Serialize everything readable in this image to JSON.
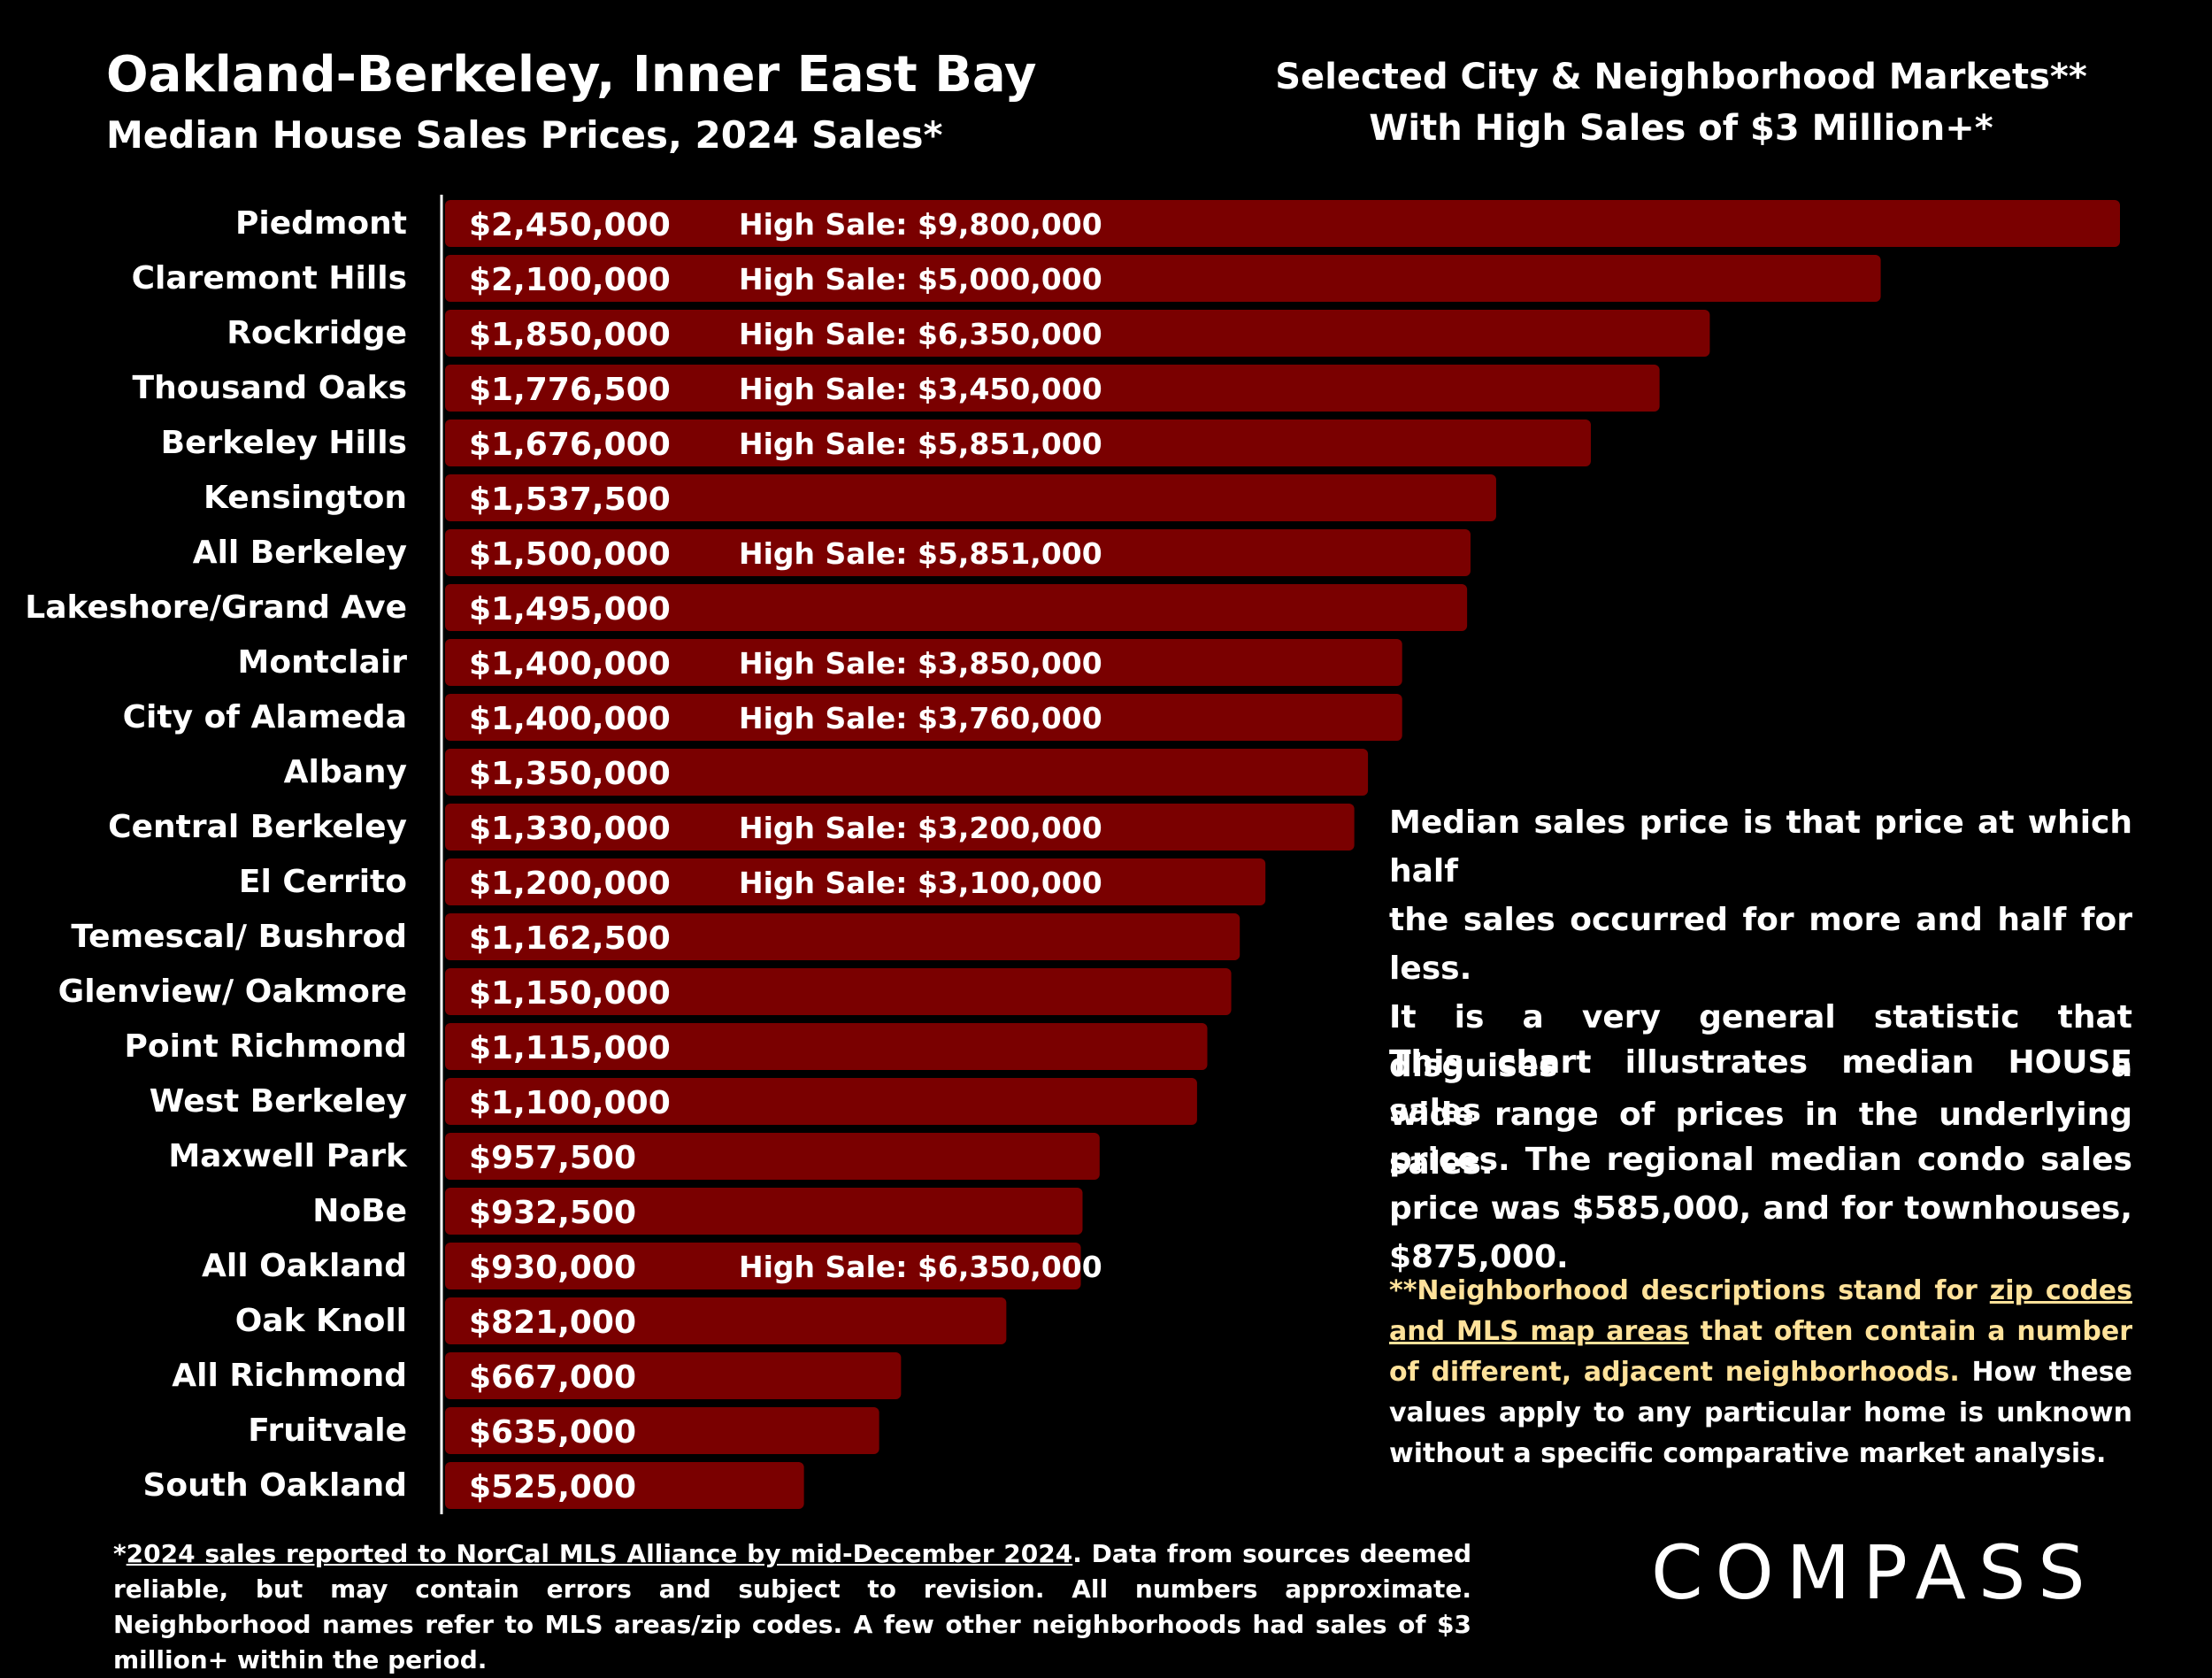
{
  "header": {
    "title": "Oakland-Berkeley, Inner East Bay",
    "subtitle": "Median House Sales Prices, 2024 Sales*",
    "right_line1": "Selected City & Neighborhood Markets**",
    "right_line2": "With High Sales of $3 Million+*"
  },
  "chart_data": {
    "type": "bar",
    "orientation": "horizontal",
    "bar_color": "#7a0000",
    "high_sale_prefix": "High Sale:",
    "xlim": [
      0,
      2450000
    ],
    "categories": [
      "Piedmont",
      "Claremont Hills",
      "Rockridge",
      "Thousand Oaks",
      "Berkeley Hills",
      "Kensington",
      "All Berkeley",
      "Lakeshore/Grand Ave",
      "Montclair",
      "City of Alameda",
      "Albany",
      "Central Berkeley",
      "El Cerrito",
      "Temescal/ Bushrod",
      "Glenview/ Oakmore",
      "Point Richmond",
      "West Berkeley",
      "Maxwell Park",
      "NoBe",
      "All Oakland",
      "Oak Knoll",
      "All Richmond",
      "Fruitvale",
      "South Oakland"
    ],
    "values": [
      2450000,
      2100000,
      1850000,
      1776500,
      1676000,
      1537500,
      1500000,
      1495000,
      1400000,
      1400000,
      1350000,
      1330000,
      1200000,
      1162500,
      1150000,
      1115000,
      1100000,
      957500,
      932500,
      930000,
      821000,
      667000,
      635000,
      525000
    ],
    "value_labels": [
      "$2,450,000",
      "$2,100,000",
      "$1,850,000",
      "$1,776,500",
      "$1,676,000",
      "$1,537,500",
      "$1,500,000",
      "$1,495,000",
      "$1,400,000",
      "$1,400,000",
      "$1,350,000",
      "$1,330,000",
      "$1,200,000",
      "$1,162,500",
      "$1,150,000",
      "$1,115,000",
      "$1,100,000",
      "$957,500",
      "$932,500",
      "$930,000",
      "$821,000",
      "$667,000",
      "$635,000",
      "$525,000"
    ],
    "high_sales": [
      "$9,800,000",
      "$5,000,000",
      "$6,350,000",
      "$3,450,000",
      "$5,851,000",
      "",
      "$5,851,000",
      "",
      "$3,850,000",
      "$3,760,000",
      "",
      "$3,200,000",
      "$3,100,000",
      "",
      "",
      "",
      "",
      "",
      "",
      "$6,350,000",
      "",
      "",
      "",
      ""
    ]
  },
  "explanation": {
    "p1_lines": [
      "Median sales price is that price at which half",
      "the sales occurred for more and half for less.",
      "It is a very general statistic that disguises a",
      "wide range of prices in the underlying sales."
    ],
    "p2_lines": [
      "This chart illustrates median HOUSE sales",
      "prices. The regional median condo sales",
      "price was $585,000, and for townhouses,",
      "$875,000."
    ]
  },
  "note": {
    "a": "**Neighborhood descriptions stand for ",
    "b": "zip codes and MLS map areas",
    "c": " that often contain a number of different, adjacent neighborhoods.",
    "d": " How these values apply to any particular home is unknown without a specific comparative market analysis."
  },
  "footer": {
    "a": "*",
    "b": "2024 sales reported to NorCal MLS Alliance by mid-December 2024",
    "c": ". Data from sources deemed reliable, but may contain errors and subject to revision. All numbers approximate. Neighborhood names refer to MLS areas/zip codes. A few other neighborhoods had sales of $3 million+ within the period."
  },
  "logo": {
    "text": "COMPASS"
  }
}
